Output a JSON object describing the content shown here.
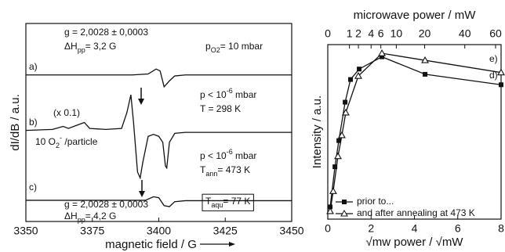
{
  "chart_data": [
    {
      "type": "line",
      "xlabel": "magnetic field / G",
      "ylabel": "dI/dB / a.u.",
      "xlim": [
        3350,
        3450
      ],
      "xticks": [
        3350,
        3375,
        3400,
        3425,
        3450
      ],
      "ylim": [
        0,
        100
      ],
      "series": [
        {
          "color": "#111111",
          "x": [
            3350,
            3390,
            3396,
            3399,
            3400.5,
            3402,
            3404,
            3406,
            3410,
            3450
          ],
          "values": [
            74,
            74,
            74.5,
            77,
            76,
            68,
            71,
            73.5,
            74,
            74
          ]
        },
        {
          "color": "#111111",
          "x": [
            3350,
            3360,
            3364,
            3366,
            3369,
            3372,
            3374,
            3380,
            3386,
            3388,
            3389.5,
            3390.5,
            3392,
            3393,
            3394,
            3396,
            3398,
            3400,
            3401.5,
            3402.5,
            3403,
            3404,
            3406,
            3410,
            3450
          ],
          "values": [
            46,
            46.5,
            48,
            47,
            48.5,
            50,
            47,
            46.5,
            47,
            55,
            64,
            50,
            25,
            22,
            30,
            43,
            44,
            43,
            40,
            28,
            27,
            40,
            44.5,
            45,
            45
          ]
        },
        {
          "color": "#111111",
          "x": [
            3350,
            3395,
            3398,
            3400,
            3402,
            3404,
            3406,
            3410,
            3450
          ],
          "values": [
            10.7,
            10.7,
            12.5,
            12,
            8,
            7.5,
            10,
            10.5,
            10.5
          ]
        }
      ],
      "annotations": [
        {
          "parts": [
            {
              "text": "g = 2,0028 ± 0,0003"
            }
          ]
        },
        {
          "parts": [
            {
              "text": "ΔH"
            },
            {
              "text": "pp",
              "shift": "sub"
            },
            {
              "text": "= 3,2 G"
            }
          ]
        },
        {
          "parts": [
            {
              "text": "p"
            },
            {
              "text": "O2",
              "shift": "sub"
            },
            {
              "text": "= 10 mbar"
            }
          ]
        },
        {
          "parts": [
            {
              "text": "a)"
            }
          ]
        },
        {
          "parts": [
            {
              "text": "(x 0.1)"
            }
          ]
        },
        {
          "parts": [
            {
              "text": "b)"
            }
          ]
        },
        {
          "parts": [
            {
              "text": "p < 10"
            },
            {
              "text": "-6",
              "shift": "sup"
            },
            {
              "text": " mbar"
            }
          ]
        },
        {
          "parts": [
            {
              "text": "T = 298 K"
            }
          ]
        },
        {
          "parts": [
            {
              "text": "10 O"
            },
            {
              "text": "2",
              "shift": "sub"
            },
            {
              "text": "-",
              "shift": "sup"
            },
            {
              "text": " /particle"
            }
          ]
        },
        {
          "parts": [
            {
              "text": "p < 10"
            },
            {
              "text": "-6",
              "shift": "sup"
            },
            {
              "text": " mbar"
            }
          ]
        },
        {
          "parts": [
            {
              "text": "T"
            },
            {
              "text": "ann",
              "shift": "sub"
            },
            {
              "text": "= 473 K"
            }
          ]
        },
        {
          "parts": [
            {
              "text": "c)"
            }
          ]
        },
        {
          "parts": [
            {
              "text": "g = 2,0028 ± 0,0003"
            }
          ]
        },
        {
          "parts": [
            {
              "text": "ΔH"
            },
            {
              "text": "pp",
              "shift": "sub"
            },
            {
              "text": "= 4,2 G"
            }
          ]
        },
        {
          "parts": [
            {
              "text": "T"
            },
            {
              "text": "aqu",
              "shift": "sub"
            },
            {
              "text": "= 77 K"
            }
          ]
        }
      ]
    },
    {
      "type": "line",
      "xlabel": "√mw power  / √mW",
      "ylabel": "Intensity / a.u.",
      "x2label": "microwave power / mW",
      "xlim": [
        0,
        8
      ],
      "xticks": [
        0,
        2,
        4,
        6,
        8
      ],
      "x2ticks": [
        0,
        1,
        2,
        4,
        6,
        10,
        20,
        40,
        60
      ],
      "ylim": [
        0,
        100
      ],
      "series": [
        {
          "name": "prior to...",
          "color": "#111111",
          "marker": "square",
          "x": [
            0.11,
            0.33,
            0.51,
            0.8,
            1.05,
            1.45,
            2.5,
            4.49,
            8
          ],
          "values": [
            7,
            30,
            45,
            67,
            80,
            86,
            93,
            83,
            77
          ]
        },
        {
          "name": "and after annealing at 473 K",
          "color": "#111111",
          "marker": "triangle",
          "x": [
            0.11,
            0.25,
            0.47,
            0.65,
            0.83,
            1.41,
            2.5,
            4.49,
            8
          ],
          "values": [
            4.5,
            16,
            36,
            48,
            61,
            82,
            95,
            91,
            84
          ]
        }
      ],
      "annotations": [
        {
          "parts": [
            {
              "text": "e)"
            }
          ]
        },
        {
          "parts": [
            {
              "text": "d)"
            }
          ]
        }
      ]
    }
  ]
}
